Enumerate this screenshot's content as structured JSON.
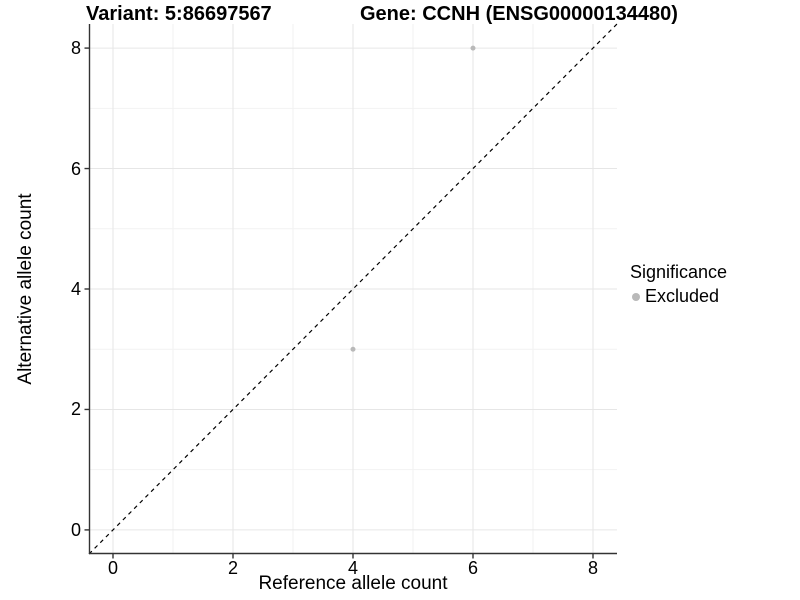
{
  "header": {
    "variant_title": "Variant: 5:86697567",
    "gene_title": "Gene: CCNH (ENSG00000134480)"
  },
  "chart_data": {
    "type": "scatter",
    "xlabel": "Reference allele count",
    "ylabel": "Alternative allele count",
    "xlim": [
      -0.4,
      8.4
    ],
    "ylim": [
      -0.4,
      8.4
    ],
    "x_ticks": [
      0,
      2,
      4,
      6,
      8
    ],
    "y_ticks": [
      0,
      2,
      4,
      6,
      8
    ],
    "gridlines_at": [
      0,
      1,
      2,
      3,
      4,
      5,
      6,
      7,
      8
    ],
    "grid": {
      "major_color": "#e6e6e6",
      "minor_color": "#f2f2f2",
      "major_are_even_integers": true
    },
    "reference_line": {
      "kind": "identity",
      "slope": 1,
      "intercept": 0,
      "style": "dashed",
      "color": "#000000"
    },
    "series": [
      {
        "name": "Excluded",
        "color": "#b9b9b9",
        "point_radius": 2.5,
        "points": [
          [
            4,
            3
          ],
          [
            6,
            8
          ]
        ]
      }
    ],
    "legend": {
      "title": "Significance",
      "position": "right",
      "items": [
        {
          "label": "Excluded",
          "color": "#b9b9b9"
        }
      ]
    }
  },
  "style": {
    "axis_color": "#333333",
    "text_color": "#000000",
    "background": "#ffffff"
  }
}
